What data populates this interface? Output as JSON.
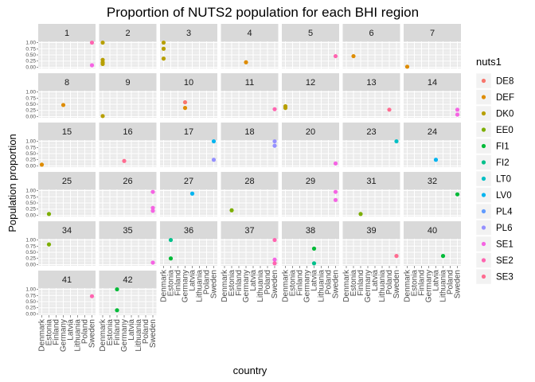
{
  "chart_data": {
    "type": "scatter",
    "title": "Proportion of NUTS2 population for each BHI region",
    "xlabel": "country",
    "ylabel": "Population proportion",
    "categories": [
      "Denmark",
      "Estonia",
      "Finland",
      "Germany",
      "Latvia",
      "Lithuania",
      "Poland",
      "Sweden"
    ],
    "yticks": [
      "0.00",
      "0.25",
      "0.50",
      "0.75",
      "1.00"
    ],
    "ylim": [
      -0.05,
      1.05
    ],
    "grid": true,
    "legend": {
      "title": "nuts1",
      "placement": "right",
      "entries": [
        {
          "name": "DE8",
          "color": "#F8766D"
        },
        {
          "name": "DEF",
          "color": "#DE8C00"
        },
        {
          "name": "DK0",
          "color": "#B79F00"
        },
        {
          "name": "EE0",
          "color": "#7CAE00"
        },
        {
          "name": "FI1",
          "color": "#00BA38"
        },
        {
          "name": "FI2",
          "color": "#00C08B"
        },
        {
          "name": "LT0",
          "color": "#00BFC4"
        },
        {
          "name": "LV0",
          "color": "#00B4F0"
        },
        {
          "name": "PL4",
          "color": "#619CFF"
        },
        {
          "name": "PL6",
          "color": "#9590FF"
        },
        {
          "name": "SE1",
          "color": "#F564E3"
        },
        {
          "name": "SE2",
          "color": "#FF64B0"
        },
        {
          "name": "SE3",
          "color": "#FF6C91"
        }
      ]
    },
    "panels": [
      {
        "label": "1",
        "points": [
          {
            "x": "Sweden",
            "y": 1.0,
            "g": "SE2"
          },
          {
            "x": "Sweden",
            "y": 0.08,
            "g": "SE1"
          }
        ]
      },
      {
        "label": "2",
        "points": [
          {
            "x": "Denmark",
            "y": 1.0,
            "g": "DK0"
          },
          {
            "x": "Denmark",
            "y": 0.3,
            "g": "DK0"
          },
          {
            "x": "Denmark",
            "y": 0.2,
            "g": "DK0"
          },
          {
            "x": "Denmark",
            "y": 0.13,
            "g": "DK0"
          }
        ]
      },
      {
        "label": "3",
        "points": [
          {
            "x": "Denmark",
            "y": 1.0,
            "g": "DK0"
          },
          {
            "x": "Denmark",
            "y": 0.75,
            "g": "DK0"
          },
          {
            "x": "Denmark",
            "y": 0.35,
            "g": "DK0"
          }
        ]
      },
      {
        "label": "4",
        "points": [
          {
            "x": "Germany",
            "y": 0.2,
            "g": "DEF"
          }
        ]
      },
      {
        "label": "5",
        "points": [
          {
            "x": "Sweden",
            "y": 0.45,
            "g": "SE2"
          }
        ]
      },
      {
        "label": "6",
        "points": [
          {
            "x": "Estonia",
            "y": 0.45,
            "g": "DEF"
          }
        ]
      },
      {
        "label": "7",
        "points": [
          {
            "x": "Denmark",
            "y": 0.02,
            "g": "DEF"
          }
        ]
      },
      {
        "label": "8",
        "points": [
          {
            "x": "Germany",
            "y": 0.47,
            "g": "DEF"
          }
        ]
      },
      {
        "label": "9",
        "points": [
          {
            "x": "Denmark",
            "y": 0.02,
            "g": "DK0"
          }
        ]
      },
      {
        "label": "10",
        "points": [
          {
            "x": "Germany",
            "y": 0.58,
            "g": "DE8"
          },
          {
            "x": "Germany",
            "y": 0.35,
            "g": "DEF"
          }
        ]
      },
      {
        "label": "11",
        "points": [
          {
            "x": "Sweden",
            "y": 0.3,
            "g": "SE2"
          }
        ]
      },
      {
        "label": "12",
        "points": [
          {
            "x": "Denmark",
            "y": 0.42,
            "g": "DK0"
          },
          {
            "x": "Denmark",
            "y": 0.35,
            "g": "DK0"
          }
        ]
      },
      {
        "label": "13",
        "points": [
          {
            "x": "Poland",
            "y": 0.28,
            "g": "SE3"
          }
        ]
      },
      {
        "label": "14",
        "points": [
          {
            "x": "Sweden",
            "y": 0.28,
            "g": "SE1"
          },
          {
            "x": "Sweden",
            "y": 0.08,
            "g": "SE1"
          }
        ]
      },
      {
        "label": "15",
        "points": [
          {
            "x": "Denmark",
            "y": 0.05,
            "g": "DEF"
          }
        ]
      },
      {
        "label": "16",
        "points": [
          {
            "x": "Germany",
            "y": 0.2,
            "g": "SE3"
          }
        ]
      },
      {
        "label": "17",
        "points": [
          {
            "x": "Sweden",
            "y": 1.0,
            "g": "LV0"
          },
          {
            "x": "Sweden",
            "y": 0.25,
            "g": "PL6"
          }
        ]
      },
      {
        "label": "18",
        "points": [
          {
            "x": "Sweden",
            "y": 1.0,
            "g": "PL6"
          },
          {
            "x": "Sweden",
            "y": 0.82,
            "g": "PL6"
          }
        ]
      },
      {
        "label": "20",
        "points": [
          {
            "x": "Sweden",
            "y": 0.1,
            "g": "SE1"
          }
        ]
      },
      {
        "label": "23",
        "points": [
          {
            "x": "Sweden",
            "y": 1.0,
            "g": "LT0"
          }
        ]
      },
      {
        "label": "24",
        "points": [
          {
            "x": "Latvia",
            "y": 0.25,
            "g": "LV0"
          }
        ]
      },
      {
        "label": "25",
        "points": [
          {
            "x": "Estonia",
            "y": 0.05,
            "g": "EE0"
          }
        ]
      },
      {
        "label": "26",
        "points": [
          {
            "x": "Sweden",
            "y": 0.95,
            "g": "SE1"
          },
          {
            "x": "Sweden",
            "y": 0.3,
            "g": "SE1"
          },
          {
            "x": "Sweden",
            "y": 0.18,
            "g": "SE1"
          }
        ]
      },
      {
        "label": "27",
        "points": [
          {
            "x": "Latvia",
            "y": 0.88,
            "g": "LV0"
          }
        ]
      },
      {
        "label": "28",
        "points": [
          {
            "x": "Estonia",
            "y": 0.2,
            "g": "EE0"
          }
        ]
      },
      {
        "label": "29",
        "points": [
          {
            "x": "Sweden",
            "y": 0.95,
            "g": "SE1"
          },
          {
            "x": "Sweden",
            "y": 0.62,
            "g": "SE1"
          }
        ]
      },
      {
        "label": "31",
        "points": [
          {
            "x": "Finland",
            "y": 0.05,
            "g": "EE0"
          }
        ]
      },
      {
        "label": "32",
        "points": [
          {
            "x": "Sweden",
            "y": 0.85,
            "g": "FI1"
          }
        ]
      },
      {
        "label": "34",
        "points": [
          {
            "x": "Estonia",
            "y": 0.82,
            "g": "EE0"
          }
        ]
      },
      {
        "label": "35",
        "points": [
          {
            "x": "Sweden",
            "y": 0.08,
            "g": "SE1"
          }
        ]
      },
      {
        "label": "36",
        "points": [
          {
            "x": "Estonia",
            "y": 1.0,
            "g": "FI2"
          },
          {
            "x": "Estonia",
            "y": 0.25,
            "g": "FI1"
          }
        ]
      },
      {
        "label": "37",
        "points": [
          {
            "x": "Sweden",
            "y": 1.0,
            "g": "SE2"
          },
          {
            "x": "Sweden",
            "y": 0.2,
            "g": "SE1"
          },
          {
            "x": "Sweden",
            "y": 0.05,
            "g": "SE2"
          }
        ]
      },
      {
        "label": "38",
        "points": [
          {
            "x": "Latvia",
            "y": 0.65,
            "g": "FI1"
          },
          {
            "x": "Latvia",
            "y": 0.05,
            "g": "FI2"
          }
        ]
      },
      {
        "label": "39",
        "points": [
          {
            "x": "Sweden",
            "y": 0.35,
            "g": "SE3"
          }
        ]
      },
      {
        "label": "40",
        "points": [
          {
            "x": "Lithuania",
            "y": 0.35,
            "g": "FI1"
          }
        ]
      },
      {
        "label": "41",
        "points": [
          {
            "x": "Sweden",
            "y": 0.72,
            "g": "SE2"
          }
        ]
      },
      {
        "label": "42",
        "points": [
          {
            "x": "Finland",
            "y": 1.0,
            "g": "FI1"
          },
          {
            "x": "Finland",
            "y": 0.15,
            "g": "FI1"
          }
        ]
      }
    ]
  }
}
